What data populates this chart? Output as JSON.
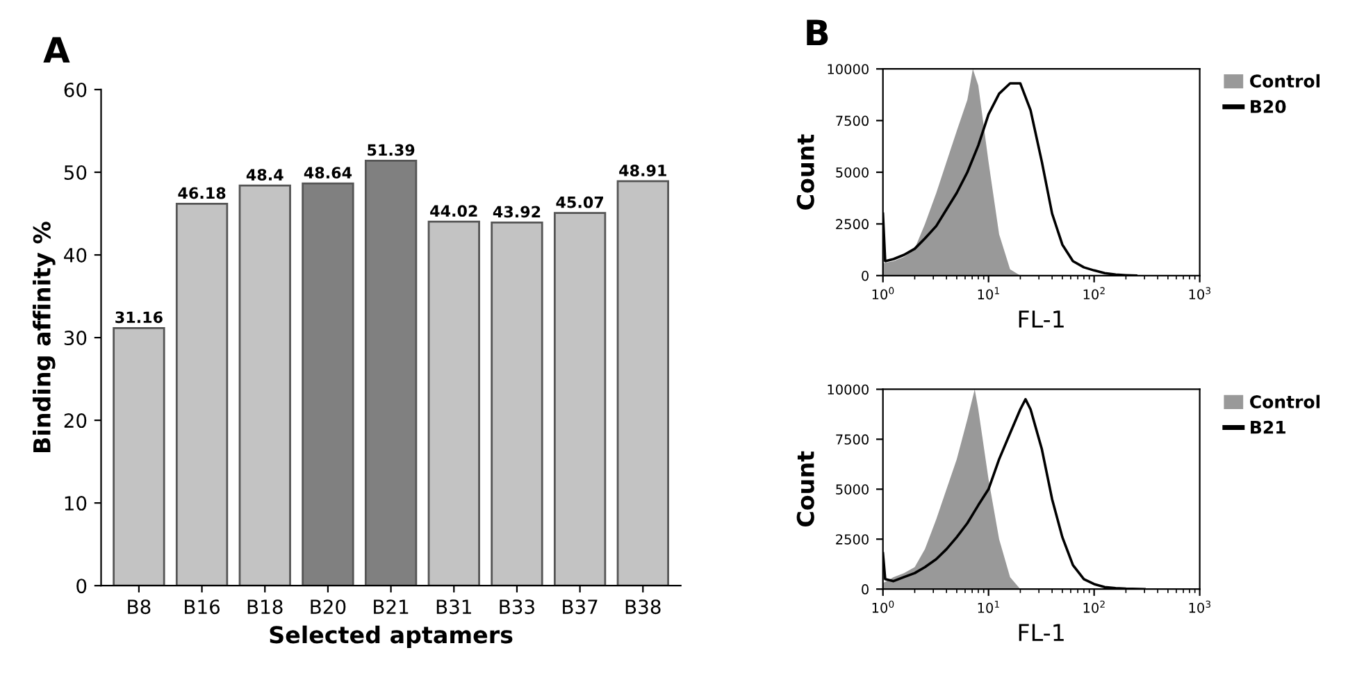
{
  "chart_data": [
    {
      "type": "bar",
      "title": "A",
      "xlabel": "Selected aptamers",
      "ylabel": "Binding affinity %",
      "categories": [
        "B8",
        "B16",
        "B18",
        "B20",
        "B21",
        "B31",
        "B33",
        "B37",
        "B38"
      ],
      "values": [
        31.16,
        46.18,
        48.4,
        48.64,
        51.39,
        44.02,
        43.92,
        45.07,
        48.91
      ],
      "colors": [
        "#c3c3c3",
        "#c3c3c3",
        "#c3c3c3",
        "#808080",
        "#808080",
        "#c3c3c3",
        "#c3c3c3",
        "#c3c3c3",
        "#c3c3c3"
      ],
      "ylim": [
        0,
        60
      ],
      "yticks": [
        0,
        10,
        20,
        30,
        40,
        50,
        60
      ],
      "data_labels": true,
      "grid": false
    },
    {
      "type": "area",
      "title": "B",
      "xlabel": "FL-1",
      "ylabel": "Count",
      "log": "x",
      "xlim": [
        1,
        1000
      ],
      "xticks": [
        {
          "value": 1,
          "label": "10$^{0}$"
        },
        {
          "value": 10,
          "label": "10$^{1}$"
        },
        {
          "value": 100,
          "label": "10$^{2}$"
        },
        {
          "value": 1000,
          "label": "10$^{3}$"
        }
      ],
      "ylim": [
        0,
        10000
      ],
      "yticks": [
        0,
        2500,
        5000,
        7500,
        10000
      ],
      "grid": false,
      "legend": "top right",
      "series": [
        {
          "name": "Control",
          "type": "area",
          "color": "#999999",
          "x": [
            1,
            1.26,
            1.58,
            2,
            2.5,
            3.2,
            4,
            5,
            6.3,
            7.1,
            8,
            10,
            12.6,
            16,
            20
          ],
          "values": [
            600,
            700,
            900,
            1300,
            2500,
            4000,
            5500,
            7000,
            8500,
            10000,
            9200,
            5500,
            2000,
            300,
            0
          ]
        },
        {
          "name": "B20",
          "type": "line",
          "color": "#000000",
          "x": [
            1,
            1.05,
            1.26,
            1.58,
            2,
            2.5,
            3.2,
            4,
            5,
            6.3,
            8,
            10,
            12.6,
            16,
            20,
            25,
            32,
            40,
            50,
            63,
            80,
            100,
            126,
            160,
            200,
            250
          ],
          "values": [
            3000,
            700,
            800,
            1000,
            1300,
            1800,
            2400,
            3200,
            4000,
            5000,
            6300,
            7800,
            8800,
            9300,
            9300,
            8000,
            5500,
            3000,
            1500,
            700,
            400,
            250,
            120,
            50,
            20,
            0
          ]
        }
      ]
    },
    {
      "type": "area",
      "xlabel": "FL-1",
      "ylabel": "Count",
      "log": "x",
      "xlim": [
        1,
        1000
      ],
      "xticks": [
        {
          "value": 1,
          "label": "10$^{0}$"
        },
        {
          "value": 10,
          "label": "10$^{1}$"
        },
        {
          "value": 100,
          "label": "10$^{2}$"
        },
        {
          "value": 1000,
          "label": "10$^{3}$"
        }
      ],
      "ylim": [
        0,
        10000
      ],
      "yticks": [
        0,
        2500,
        5000,
        7500,
        10000
      ],
      "grid": false,
      "legend": "top right",
      "series": [
        {
          "name": "Control",
          "type": "area",
          "color": "#999999",
          "x": [
            1,
            1.26,
            1.58,
            2,
            2.5,
            3.2,
            4,
            5,
            6.3,
            7.4,
            8,
            10,
            12.6,
            16,
            20
          ],
          "values": [
            300,
            600,
            800,
            1100,
            2000,
            3500,
            5000,
            6500,
            8500,
            10000,
            9000,
            5500,
            2500,
            600,
            0
          ]
        },
        {
          "name": "B21",
          "type": "line",
          "color": "#000000",
          "x": [
            1,
            1.05,
            1.26,
            1.58,
            2,
            2.5,
            3.2,
            4,
            5,
            6.3,
            8,
            10,
            12.6,
            16,
            20,
            22.4,
            25,
            32,
            40,
            50,
            63,
            80,
            100,
            126,
            160,
            200,
            300
          ],
          "values": [
            1800,
            500,
            400,
            600,
            800,
            1100,
            1500,
            2000,
            2600,
            3300,
            4200,
            5000,
            6500,
            7800,
            9000,
            9500,
            9000,
            7000,
            4500,
            2600,
            1200,
            500,
            250,
            100,
            50,
            20,
            0
          ]
        }
      ]
    }
  ]
}
